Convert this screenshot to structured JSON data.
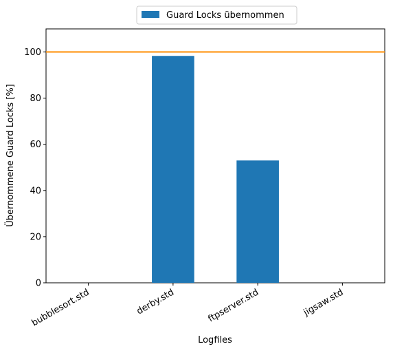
{
  "chart_data": {
    "type": "bar",
    "categories": [
      "bubblesort.std",
      "derby.std",
      "ftpserver.std",
      "jigsaw.std"
    ],
    "series": [
      {
        "name": "Guard Locks übernommen",
        "values": [
          0,
          98.3,
          53,
          0
        ],
        "color": "#1f77b4"
      }
    ],
    "reference_line": {
      "y": 100,
      "color": "#ff8c00"
    },
    "xlabel": "Logfiles",
    "ylabel": "Übernommene Guard Locks [%]",
    "ylim": [
      0,
      110
    ],
    "yticks": [
      0,
      20,
      40,
      60,
      80,
      100
    ],
    "grid": false,
    "legend": "top-center",
    "xtick_rotation": -30
  }
}
